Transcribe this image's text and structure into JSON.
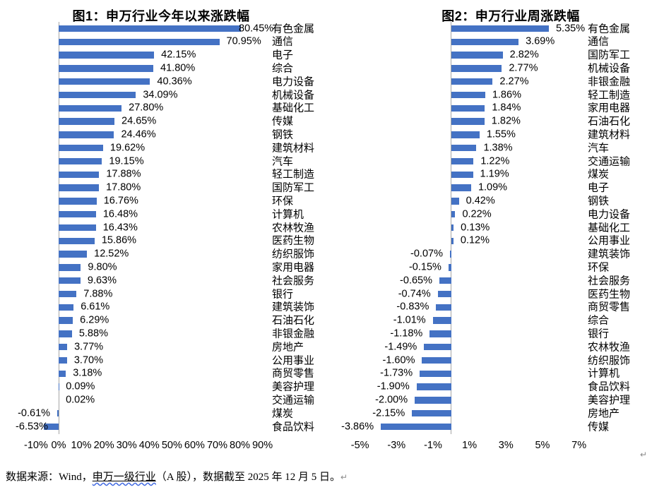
{
  "footer": {
    "prefix": "数据来源：Wind，",
    "link_text": "申万一级行业",
    "suffix": "（A 股），数据截至 2025 年 12 月 5 日。",
    "return_mark": "↵"
  },
  "trailing_return_mark": "↵",
  "chart_data": [
    {
      "type": "bar",
      "orientation": "horizontal",
      "title": "图1：申万行业今年以来涨跌幅",
      "categories": [
        "有色金属",
        "通信",
        "电子",
        "综合",
        "电力设备",
        "机械设备",
        "基础化工",
        "传媒",
        "钢铁",
        "建筑材料",
        "汽车",
        "轻工制造",
        "国防军工",
        "环保",
        "计算机",
        "农林牧渔",
        "医药生物",
        "纺织服饰",
        "家用电器",
        "社会服务",
        "银行",
        "建筑装饰",
        "石油石化",
        "非银金融",
        "房地产",
        "公用事业",
        "商贸零售",
        "美容护理",
        "交通运输",
        "煤炭",
        "食品饮料"
      ],
      "values": [
        80.45,
        70.95,
        42.15,
        41.8,
        40.36,
        34.09,
        27.8,
        24.65,
        24.46,
        19.62,
        19.15,
        17.88,
        17.8,
        16.76,
        16.48,
        16.43,
        15.86,
        12.52,
        9.8,
        9.63,
        7.88,
        6.61,
        6.29,
        5.88,
        3.77,
        3.7,
        3.18,
        0.09,
        0.02,
        -0.61,
        -6.53
      ],
      "value_labels": [
        "80.45%",
        "70.95%",
        "42.15%",
        "41.80%",
        "40.36%",
        "34.09%",
        "27.80%",
        "24.65%",
        "24.46%",
        "19.62%",
        "19.15%",
        "17.88%",
        "17.80%",
        "16.76%",
        "16.48%",
        "16.43%",
        "15.86%",
        "12.52%",
        "9.80%",
        "9.63%",
        "7.88%",
        "6.61%",
        "6.29%",
        "5.88%",
        "3.77%",
        "3.70%",
        "3.18%",
        "0.09%",
        "0.02%",
        "-0.61%",
        "-6.53%"
      ],
      "xlabel": "",
      "ylabel": "",
      "xlim": [
        -10,
        90
      ],
      "grid": false,
      "legend": "none",
      "x_ticks": {
        "labels": [
          "-10%",
          "0%",
          "10%",
          "20%",
          "30%",
          "40%",
          "50%",
          "60%",
          "70%",
          "80%",
          "90%"
        ],
        "values": [
          -10,
          0,
          10,
          20,
          30,
          40,
          50,
          60,
          70,
          80,
          90
        ]
      },
      "bar_color": "#4472C4",
      "axis_color": "#A6A6A6"
    },
    {
      "type": "bar",
      "orientation": "horizontal",
      "title": "图2：申万行业周涨跌幅",
      "categories": [
        "有色金属",
        "通信",
        "国防军工",
        "机械设备",
        "非银金融",
        "轻工制造",
        "家用电器",
        "石油石化",
        "建筑材料",
        "汽车",
        "交通运输",
        "煤炭",
        "电子",
        "钢铁",
        "电力设备",
        "基础化工",
        "公用事业",
        "建筑装饰",
        "环保",
        "社会服务",
        "医药生物",
        "商贸零售",
        "综合",
        "银行",
        "农林牧渔",
        "纺织服饰",
        "计算机",
        "食品饮料",
        "美容护理",
        "房地产",
        "传媒"
      ],
      "values": [
        5.35,
        3.69,
        2.82,
        2.77,
        2.27,
        1.86,
        1.84,
        1.82,
        1.55,
        1.38,
        1.22,
        1.19,
        1.09,
        0.42,
        0.22,
        0.13,
        0.12,
        -0.07,
        -0.15,
        -0.65,
        -0.74,
        -0.83,
        -1.01,
        -1.18,
        -1.49,
        -1.6,
        -1.73,
        -1.9,
        -2.0,
        -2.15,
        -3.86
      ],
      "value_labels": [
        "5.35%",
        "3.69%",
        "2.82%",
        "2.77%",
        "2.27%",
        "1.86%",
        "1.84%",
        "1.82%",
        "1.55%",
        "1.38%",
        "1.22%",
        "1.19%",
        "1.09%",
        "0.42%",
        "0.22%",
        "0.13%",
        "0.12%",
        "-0.07%",
        "-0.15%",
        "-0.65%",
        "-0.74%",
        "-0.83%",
        "-1.01%",
        "-1.18%",
        "-1.49%",
        "-1.60%",
        "-1.73%",
        "-1.90%",
        "-2.00%",
        "-2.15%",
        "-3.86%"
      ],
      "xlabel": "",
      "ylabel": "",
      "xlim": [
        -5,
        7
      ],
      "grid": false,
      "legend": "none",
      "x_ticks": {
        "labels": [
          "-5%",
          "-3%",
          "-1%",
          "1%",
          "3%",
          "5%",
          "7%"
        ],
        "values": [
          -5,
          -3,
          -1,
          1,
          3,
          5,
          7
        ]
      },
      "bar_color": "#4472C4",
      "axis_color": "#A6A6A6"
    }
  ]
}
